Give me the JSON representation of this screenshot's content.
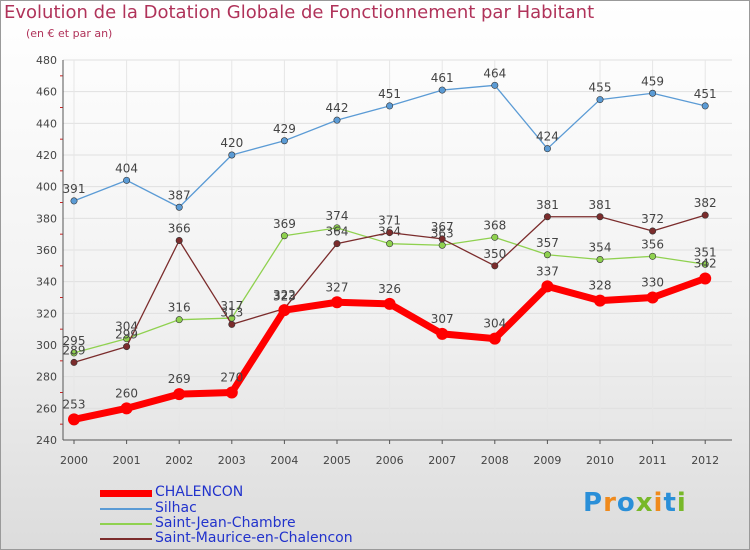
{
  "chart_data": {
    "type": "line",
    "title": "Evolution de la Dotation Globale de Fonctionnement par Habitant",
    "subtitle": "(en € et par an)",
    "xlabel": "",
    "ylabel": "",
    "ylim": [
      240,
      480
    ],
    "yticks": [
      "240",
      "260",
      "280",
      "300",
      "320",
      "340",
      "360",
      "380",
      "400",
      "420",
      "440",
      "460",
      "480"
    ],
    "categories": [
      "2000",
      "2001",
      "2002",
      "2003",
      "2004",
      "2005",
      "2006",
      "2007",
      "2008",
      "2009",
      "2010",
      "2011",
      "2012"
    ],
    "series": [
      {
        "name": "Silhac",
        "color": "#5b9bd5",
        "values": [
          391,
          404,
          387,
          420,
          429,
          442,
          451,
          461,
          464,
          424,
          455,
          459,
          451
        ],
        "labels": [
          "391",
          "404",
          "387",
          "420",
          "429",
          "442",
          "451",
          "461",
          "464",
          "424",
          "455",
          "459",
          "451"
        ]
      },
      {
        "name": "Saint-Jean-Chambre",
        "color": "#8fd14f",
        "values": [
          295,
          304,
          316,
          317,
          369,
          374,
          364,
          363,
          368,
          357,
          354,
          356,
          351
        ],
        "labels": [
          "295",
          "304",
          "316",
          "317",
          "369",
          "374",
          "364",
          "363",
          "368",
          "357",
          "354",
          "356",
          "351"
        ]
      },
      {
        "name": "Saint-Maurice-en-Chalencon",
        "color": "#7b2c2c",
        "values": [
          289,
          299,
          366,
          313,
          323,
          364,
          371,
          367,
          350,
          381,
          381,
          372,
          382
        ],
        "labels": [
          "289",
          "299",
          "366",
          "313",
          "323",
          "364",
          "371",
          "367",
          "350",
          "381",
          "381",
          "372",
          "382"
        ]
      },
      {
        "name": "CHALENCON",
        "color": "#ff0000",
        "values": [
          253,
          260,
          269,
          270,
          322,
          327,
          326,
          307,
          304,
          337,
          328,
          330,
          342
        ],
        "labels": [
          "253",
          "260",
          "269",
          "270",
          "322",
          "327",
          "326",
          "307",
          "304",
          "337",
          "328",
          "330",
          "342"
        ]
      }
    ],
    "legend": [
      "CHALENCON",
      "Silhac",
      "Saint-Jean-Chambre",
      "Saint-Maurice-en-Chalencon"
    ],
    "legend_position": "bottom-left"
  },
  "brand": {
    "logo_text": "Proxiti",
    "letters": [
      "P",
      "r",
      "o",
      "x",
      "i",
      "t",
      "i"
    ],
    "letter_colors": [
      "#2a8fd8",
      "#f08a1c",
      "#2a8fd8",
      "#78b829",
      "#f08a1c",
      "#2a8fd8",
      "#78b829"
    ]
  }
}
